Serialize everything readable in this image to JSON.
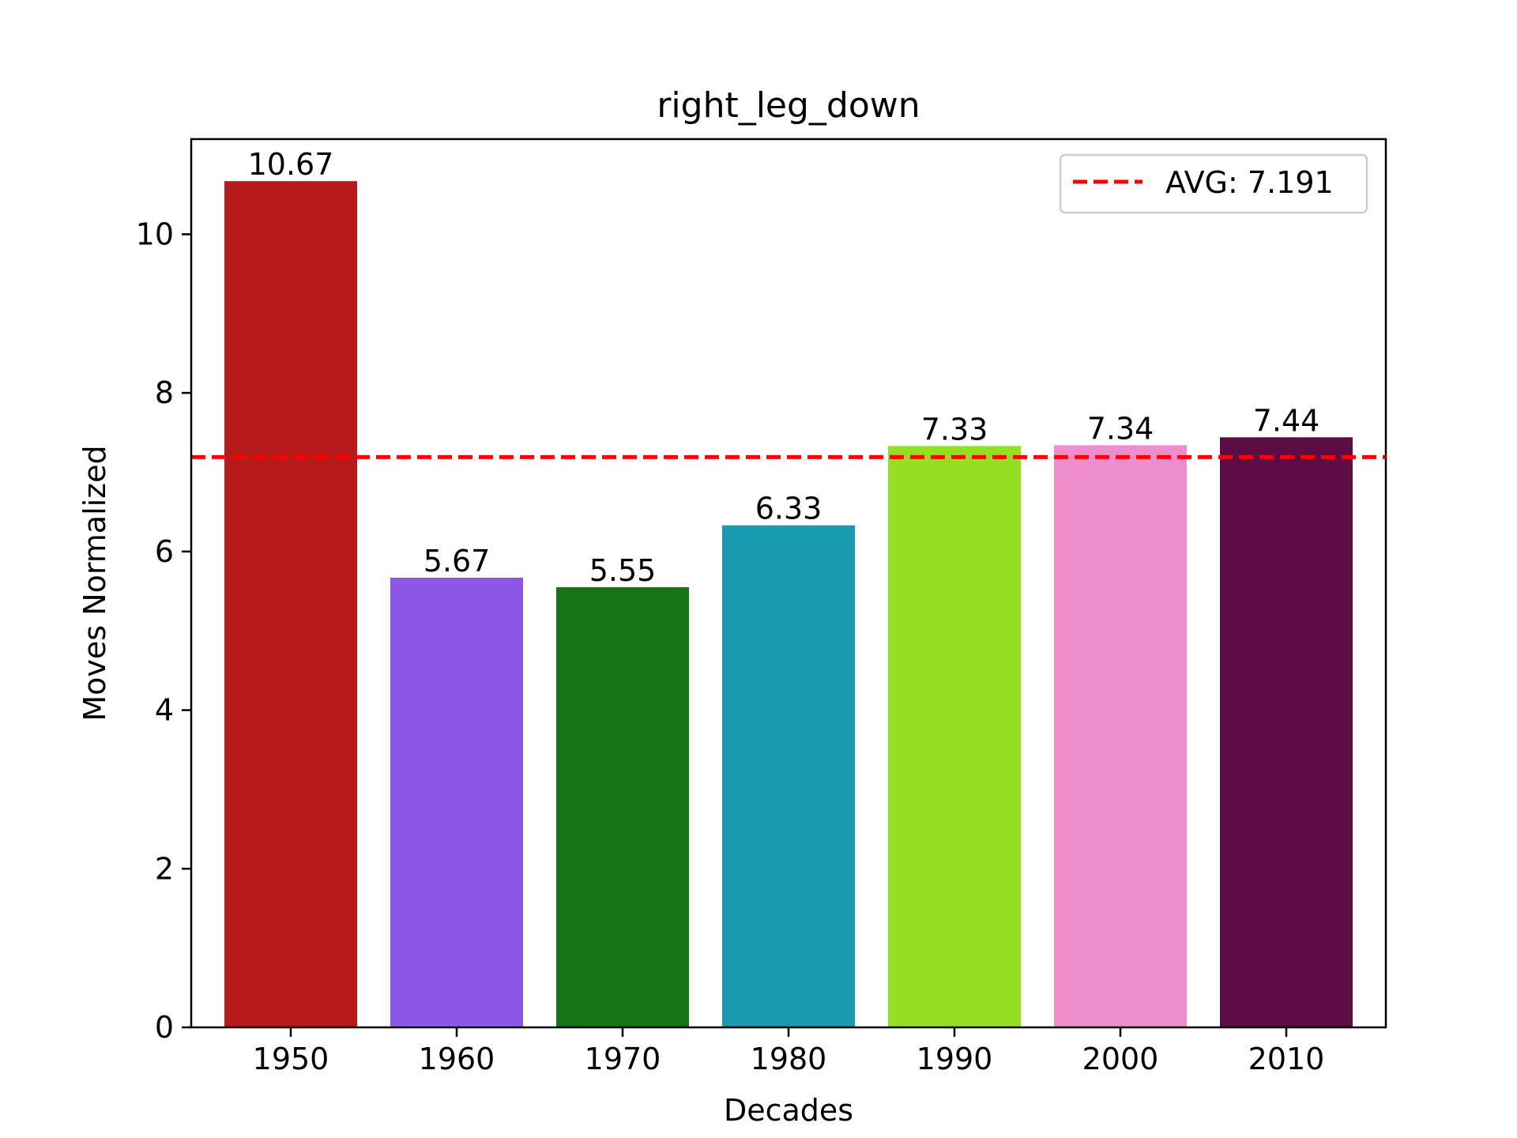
{
  "chart_data": {
    "type": "bar",
    "title": "right_leg_down",
    "xlabel": "Decades",
    "ylabel": "Moves Normalized",
    "categories": [
      "1950",
      "1960",
      "1970",
      "1980",
      "1990",
      "2000",
      "2010"
    ],
    "values": [
      10.67,
      5.67,
      5.55,
      6.33,
      7.33,
      7.34,
      7.44
    ],
    "value_labels": [
      "10.67",
      "5.67",
      "5.55",
      "6.33",
      "7.33",
      "7.34",
      "7.44"
    ],
    "colors": [
      "#b71a1a",
      "#8c57e6",
      "#137513",
      "#1a9aae",
      "#94df21",
      "#ee8ecd",
      "#5e0c45"
    ],
    "ylim": [
      0,
      11.2
    ],
    "yticks": [
      0,
      2,
      4,
      6,
      8,
      10
    ],
    "grid": false,
    "average": {
      "value": 7.191,
      "label": "AVG: 7.191",
      "color": "#ff0000",
      "style": "dashed"
    },
    "legend": {
      "placement": "top-right"
    }
  }
}
